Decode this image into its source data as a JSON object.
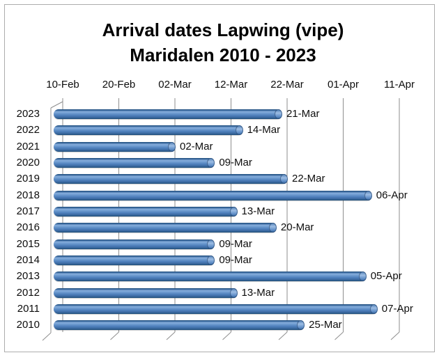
{
  "title": {
    "line1": "Arrival dates Lapwing (vipe)",
    "line2": "Maridalen 2010 - 2023"
  },
  "chart_data": {
    "type": "bar",
    "orientation": "horizontal",
    "style": "3d-cylinder",
    "title": "Arrival dates Lapwing (vipe) Maridalen 2010 - 2023",
    "legend": "none",
    "x_axis": {
      "position": "top",
      "tick_labels": [
        "10-Feb",
        "20-Feb",
        "02-Mar",
        "12-Mar",
        "22-Mar",
        "01-Apr",
        "11-Apr"
      ],
      "tick_days": [
        0,
        10,
        20,
        30,
        40,
        50,
        60
      ],
      "range_days": [
        0,
        60
      ],
      "grid": true
    },
    "categories": [
      "2023",
      "2022",
      "2021",
      "2020",
      "2019",
      "2018",
      "2017",
      "2016",
      "2015",
      "2014",
      "2013",
      "2012",
      "2011",
      "2010"
    ],
    "values": [
      "21-Mar",
      "14-Mar",
      "02-Mar",
      "09-Mar",
      "22-Mar",
      "06-Apr",
      "13-Mar",
      "20-Mar",
      "09-Mar",
      "09-Mar",
      "05-Apr",
      "13-Mar",
      "07-Apr",
      "25-Mar"
    ],
    "values_days_from_10feb": [
      39,
      32,
      20,
      27,
      40,
      55,
      31,
      38,
      27,
      27,
      54,
      31,
      56,
      43
    ],
    "bar_color": "#4f81bd"
  },
  "colors": {
    "background": "#ffffff",
    "frame_border": "#adadad",
    "grid_line": "#8e8e8e",
    "bar_mid": "#4f81bd",
    "bar_light": "#9dbde4",
    "bar_dark": "#1f4e79",
    "text": "#0d0d0d"
  }
}
